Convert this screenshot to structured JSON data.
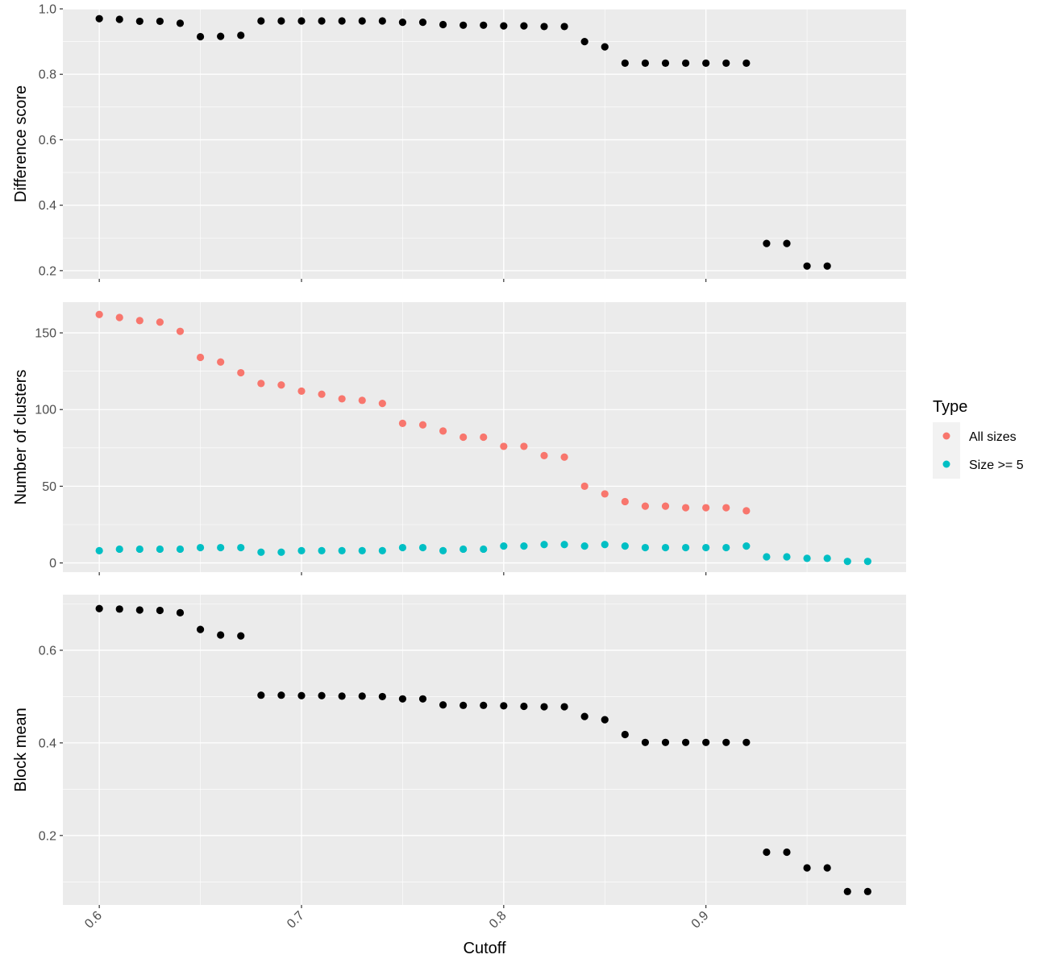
{
  "chart_data": {
    "type": "scatter",
    "x_label": "Cutoff",
    "x_range": [
      0.582,
      0.999
    ],
    "x_ticks": [
      0.6,
      0.7,
      0.8,
      0.9
    ],
    "x_tick_labels": [
      "0.6",
      "0.7",
      "0.8",
      "0.9"
    ],
    "x_tick_label_rotation": -45,
    "background": "#ebebeb",
    "grid": true,
    "legend": {
      "title": "Type",
      "placement": "right",
      "entries": [
        {
          "label": "All sizes",
          "color": "#f8766d"
        },
        {
          "label": "Size >= 5",
          "color": "#00bfc4"
        }
      ]
    },
    "panels": [
      {
        "ylabel": "Difference score",
        "ylim": [
          0.175,
          1.0
        ],
        "y_ticks": [
          0.2,
          0.4,
          0.6,
          0.8,
          1.0
        ],
        "y_tick_labels": [
          "0.2",
          "0.4",
          "0.6",
          "0.8",
          "1.0"
        ],
        "series": [
          {
            "color": "#000000",
            "x": [
              0.6,
              0.61,
              0.62,
              0.63,
              0.64,
              0.65,
              0.66,
              0.67,
              0.68,
              0.69,
              0.7,
              0.71,
              0.72,
              0.73,
              0.74,
              0.75,
              0.76,
              0.77,
              0.78,
              0.79,
              0.8,
              0.81,
              0.82,
              0.83,
              0.84,
              0.85,
              0.86,
              0.87,
              0.88,
              0.89,
              0.9,
              0.91,
              0.92,
              0.93,
              0.94,
              0.95,
              0.96
            ],
            "y": [
              0.97,
              0.968,
              0.962,
              0.962,
              0.956,
              0.915,
              0.916,
              0.919,
              0.963,
              0.963,
              0.963,
              0.963,
              0.963,
              0.963,
              0.963,
              0.959,
              0.959,
              0.952,
              0.95,
              0.95,
              0.948,
              0.948,
              0.946,
              0.946,
              0.9,
              0.884,
              0.834,
              0.834,
              0.834,
              0.834,
              0.834,
              0.834,
              0.834,
              0.283,
              0.283,
              0.214,
              0.214
            ]
          }
        ]
      },
      {
        "ylabel": "Number of clusters",
        "ylim": [
          -6,
          170
        ],
        "y_ticks": [
          0,
          50,
          100,
          150
        ],
        "y_tick_labels": [
          "0",
          "50",
          "100",
          "150"
        ],
        "series": [
          {
            "name": "All sizes",
            "color": "#f8766d",
            "x": [
              0.6,
              0.61,
              0.62,
              0.63,
              0.64,
              0.65,
              0.66,
              0.67,
              0.68,
              0.69,
              0.7,
              0.71,
              0.72,
              0.73,
              0.74,
              0.75,
              0.76,
              0.77,
              0.78,
              0.79,
              0.8,
              0.81,
              0.82,
              0.83,
              0.84,
              0.85,
              0.86,
              0.87,
              0.88,
              0.89,
              0.9,
              0.91,
              0.92
            ],
            "y": [
              162,
              160,
              158,
              157,
              151,
              134,
              131,
              124,
              117,
              116,
              112,
              110,
              107,
              106,
              104,
              91,
              90,
              86,
              82,
              82,
              76,
              76,
              70,
              69,
              50,
              45,
              40,
              37,
              37,
              36,
              36,
              36,
              34
            ]
          },
          {
            "name": "Size >= 5",
            "color": "#00bfc4",
            "x": [
              0.6,
              0.61,
              0.62,
              0.63,
              0.64,
              0.65,
              0.66,
              0.67,
              0.68,
              0.69,
              0.7,
              0.71,
              0.72,
              0.73,
              0.74,
              0.75,
              0.76,
              0.77,
              0.78,
              0.79,
              0.8,
              0.81,
              0.82,
              0.83,
              0.84,
              0.85,
              0.86,
              0.87,
              0.88,
              0.89,
              0.9,
              0.91,
              0.92,
              0.93,
              0.94,
              0.95,
              0.96,
              0.97,
              0.98
            ],
            "y": [
              8,
              9,
              9,
              9,
              9,
              10,
              10,
              10,
              7,
              7,
              8,
              8,
              8,
              8,
              8,
              10,
              10,
              8,
              9,
              9,
              11,
              11,
              12,
              12,
              11,
              12,
              11,
              10,
              10,
              10,
              10,
              10,
              11,
              4,
              4,
              3,
              3,
              1,
              1
            ]
          }
        ]
      },
      {
        "ylabel": "Block mean",
        "ylim": [
          0.05,
          0.72
        ],
        "y_ticks": [
          0.2,
          0.4,
          0.6
        ],
        "y_tick_labels": [
          "0.2",
          "0.4",
          "0.6"
        ],
        "series": [
          {
            "color": "#000000",
            "x": [
              0.6,
              0.61,
              0.62,
              0.63,
              0.64,
              0.65,
              0.66,
              0.67,
              0.68,
              0.69,
              0.7,
              0.71,
              0.72,
              0.73,
              0.74,
              0.75,
              0.76,
              0.77,
              0.78,
              0.79,
              0.8,
              0.81,
              0.82,
              0.83,
              0.84,
              0.85,
              0.86,
              0.87,
              0.88,
              0.89,
              0.9,
              0.91,
              0.92,
              0.93,
              0.94,
              0.95,
              0.96,
              0.97,
              0.98
            ],
            "y": [
              0.69,
              0.689,
              0.687,
              0.686,
              0.681,
              0.645,
              0.633,
              0.631,
              0.503,
              0.503,
              0.502,
              0.502,
              0.501,
              0.501,
              0.5,
              0.495,
              0.495,
              0.482,
              0.481,
              0.481,
              0.48,
              0.479,
              0.478,
              0.478,
              0.457,
              0.45,
              0.418,
              0.401,
              0.401,
              0.401,
              0.401,
              0.401,
              0.401,
              0.164,
              0.164,
              0.13,
              0.13,
              0.079,
              0.079
            ]
          }
        ]
      }
    ]
  }
}
